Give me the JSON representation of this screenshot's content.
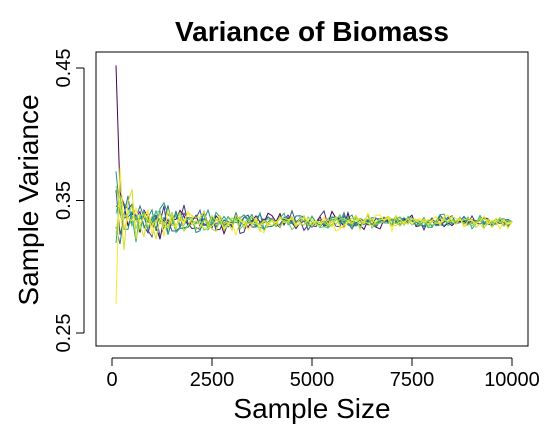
{
  "chart_data": {
    "type": "line",
    "title": "Variance of Biomass",
    "xlabel": "Sample Size",
    "ylabel": "Sample Variance",
    "xlim": [
      0,
      10000
    ],
    "ylim": [
      0.25,
      0.45
    ],
    "xticks": [
      0,
      2500,
      5000,
      7500,
      10000
    ],
    "xtick_labels": [
      "0",
      "2500",
      "5000",
      "7500",
      "10000"
    ],
    "yticks": [
      0.25,
      0.35,
      0.45
    ],
    "ytick_labels": [
      "0.25",
      "0.35",
      "0.45"
    ],
    "grid": false,
    "legend": "none",
    "converged_value": 0.334,
    "x_start": 100,
    "x_step": 100,
    "series": [
      {
        "color": "#440154",
        "initial_value": 0.452,
        "initial_amplitude": 0.04
      },
      {
        "color": "#472D7B",
        "initial_value": 0.346,
        "initial_amplitude": 0.036
      },
      {
        "color": "#3B528B",
        "initial_value": 0.358,
        "initial_amplitude": 0.034
      },
      {
        "color": "#2C728E",
        "initial_value": 0.33,
        "initial_amplitude": 0.034
      },
      {
        "color": "#21908C",
        "initial_value": 0.372,
        "initial_amplitude": 0.036
      },
      {
        "color": "#27AD81",
        "initial_value": 0.318,
        "initial_amplitude": 0.034
      },
      {
        "color": "#5DC863",
        "initial_value": 0.34,
        "initial_amplitude": 0.032
      },
      {
        "color": "#AADC32",
        "initial_value": 0.361,
        "initial_amplitude": 0.034
      },
      {
        "color": "#D8E219",
        "initial_value": 0.325,
        "initial_amplitude": 0.036
      },
      {
        "color": "#FDE725",
        "initial_value": 0.272,
        "initial_amplitude": 0.042
      }
    ]
  }
}
